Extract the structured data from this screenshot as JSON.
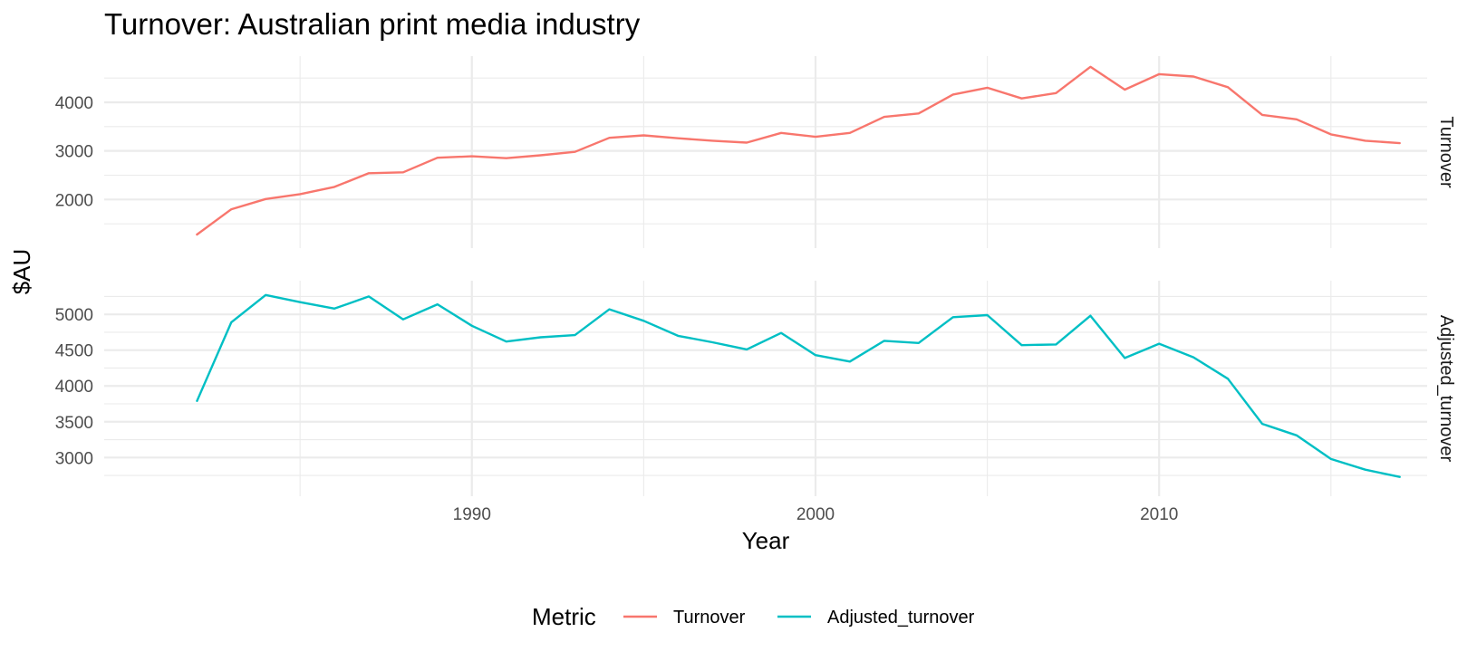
{
  "chart_data": {
    "type": "line",
    "title": "Turnover: Australian print media industry",
    "xlabel": "Year",
    "ylabel": "$AU",
    "legend": {
      "title": "Metric",
      "position": "bottom"
    },
    "x": [
      1982,
      1983,
      1984,
      1985,
      1986,
      1987,
      1988,
      1989,
      1990,
      1991,
      1992,
      1993,
      1994,
      1995,
      1996,
      1997,
      1998,
      1999,
      2000,
      2001,
      2002,
      2003,
      2004,
      2005,
      2006,
      2007,
      2008,
      2009,
      2010,
      2011,
      2012,
      2013,
      2014,
      2015,
      2016,
      2017
    ],
    "x_ticks": [
      1990,
      2000,
      2010
    ],
    "xlim": [
      1979.3,
      2017.8
    ],
    "series": [
      {
        "name": "Turnover",
        "color": "#F8766D",
        "values": [
          1280,
          1800,
          2010,
          2110,
          2260,
          2540,
          2560,
          2860,
          2890,
          2850,
          2910,
          2980,
          3270,
          3320,
          3260,
          3210,
          3170,
          3370,
          3290,
          3370,
          3700,
          3770,
          4160,
          4300,
          4080,
          4190,
          4730,
          4260,
          4580,
          4530,
          4310,
          3740,
          3650,
          3340,
          3210,
          3160
        ],
        "ylim": [
          1000,
          4950
        ],
        "y_ticks": [
          2000,
          3000,
          4000
        ]
      },
      {
        "name": "Adjusted_turnover",
        "color": "#00BFC4",
        "values": [
          3790,
          4890,
          5270,
          5170,
          5080,
          5250,
          4930,
          5140,
          4840,
          4620,
          4680,
          4710,
          5070,
          4910,
          4700,
          4610,
          4510,
          4740,
          4430,
          4340,
          4630,
          4600,
          4960,
          4990,
          4570,
          4580,
          4980,
          4390,
          4590,
          4400,
          4100,
          3470,
          3310,
          2980,
          2830,
          2730
        ],
        "ylim": [
          2460,
          5470
        ],
        "y_ticks": [
          3000,
          3500,
          4000,
          4500,
          5000
        ]
      }
    ]
  }
}
